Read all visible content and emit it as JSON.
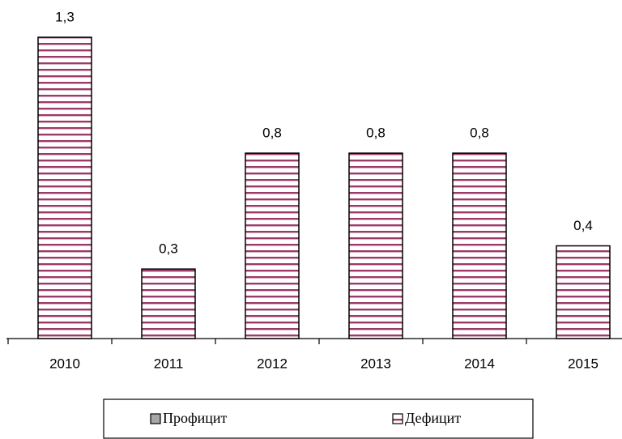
{
  "chart_data": {
    "type": "bar",
    "categories": [
      "2010",
      "2011",
      "2012",
      "2013",
      "2014",
      "2015"
    ],
    "series": [
      {
        "name": "Профицит",
        "color": "#a6a6a6",
        "values": [
          null,
          null,
          null,
          null,
          null,
          null
        ]
      },
      {
        "name": "Дефицит",
        "color": "#9c3a6a",
        "pattern": "horizontal-stripes",
        "values": [
          1.3,
          0.3,
          0.8,
          0.8,
          0.8,
          0.4
        ],
        "value_labels": [
          "1,3",
          "0,3",
          "0,8",
          "0,8",
          "0,8",
          "0,4"
        ]
      }
    ],
    "legend": "bottom"
  }
}
